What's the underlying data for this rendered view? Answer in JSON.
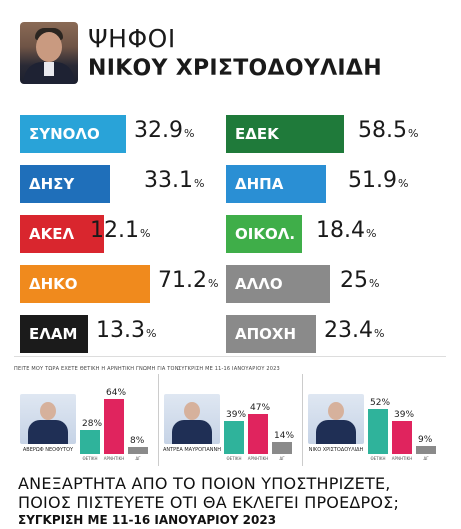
{
  "header": {
    "title_top": "ΨΗΦΟΙ",
    "title_bottom": "ΝΙΚΟΥ ΧΡΙΣΤΟΔΟΥΛΙΔΗ"
  },
  "chart_data": [
    {
      "type": "table",
      "rows": [
        {
          "label": "ΣΥΝΟΛΟ",
          "value": "32.9",
          "unit": "%",
          "color": "#29a3d8"
        },
        {
          "label": "ΔΗΣΥ",
          "value": "33.1",
          "unit": "%",
          "color": "#1f6fba"
        },
        {
          "label": "ΑΚΕΛ",
          "value": "12.1",
          "unit": "%",
          "color": "#d9262e"
        },
        {
          "label": "ΔΗΚΟ",
          "value": "71.2",
          "unit": "%",
          "color": "#f08a1d"
        },
        {
          "label": "ΕΛΑΜ",
          "value": "13.3",
          "unit": "%",
          "color": "#1b1b1b"
        },
        {
          "label": "ΕΔΕΚ",
          "value": "58.5",
          "unit": "%",
          "color": "#1f7a3a"
        },
        {
          "label": "ΔΗΠΑ",
          "value": "51.9",
          "unit": "%",
          "color": "#2a8fd4"
        },
        {
          "label": "ΟΙΚΟΛ.",
          "value": "18.4",
          "unit": "%",
          "color": "#3fae49"
        },
        {
          "label": "ΑΛΛΟ",
          "value": "25",
          "unit": "%",
          "color": "#8a8a8a"
        },
        {
          "label": "ΑΠΟΧΗ",
          "value": "23.4",
          "unit": "%",
          "color": "#8a8a8a"
        }
      ]
    },
    {
      "type": "bar",
      "caption": "ΠΕΙΤΕ ΜΟΥ ΤΩΡΑ ΕΧΕΤΕ ΘΕΤΙΚΗ Η ΑΡΝΗΤΙΚΗ ΓΝΩΜΗ ΓΙΑ ΤΟΝ:",
      "caption_small": "ΣΥΓΚΡΙΣΗ ΜΕ 11-16 ΙΑΝΟΥΑΡΙΟΥ 2023",
      "categories": [
        "ΘΕΤΙΚΗ",
        "ΑΡΝΗΤΙΚΗ",
        "ΔΓ"
      ],
      "colors": [
        "#2fb39b",
        "#e0245e",
        "#8a8a8a"
      ],
      "candidates": [
        {
          "name_line1": "ΑΒΕΡΩΦ",
          "name_line2": "ΝΕΟΦΥΤΟΥ",
          "values": [
            28,
            64,
            8
          ]
        },
        {
          "name_line1": "ΑΝΤΡΕΑ",
          "name_line2": "ΜΑΥΡΟΓΙΑΝΝΗ",
          "values": [
            39,
            47,
            14
          ]
        },
        {
          "name_line1": "ΝΙΚΟ",
          "name_line2": "ΧΡΙΣΤΟΔΟΥΛΙΔΗ",
          "values": [
            52,
            39,
            9
          ]
        }
      ]
    }
  ],
  "footer": {
    "question_line1": "ΑΝΕΞΑΡΤΗΤΑ ΑΠΟ ΤΟ ΠΟΙΟΝ ΥΠΟΣΤΗΡΙΖΕΤΕ,",
    "question_line2": "ΠΟΙΟΣ ΠΙΣΤΕΥΕΤΕ ΟΤΙ ΘΑ ΕΚΛΕΓΕΙ ΠΡΟΕΔΡΟΣ;",
    "comparison": "ΣΥΓΚΡΙΣΗ ΜΕ 11-16 ΙΑΝΟΥΑΡΙΟΥ 2023"
  }
}
